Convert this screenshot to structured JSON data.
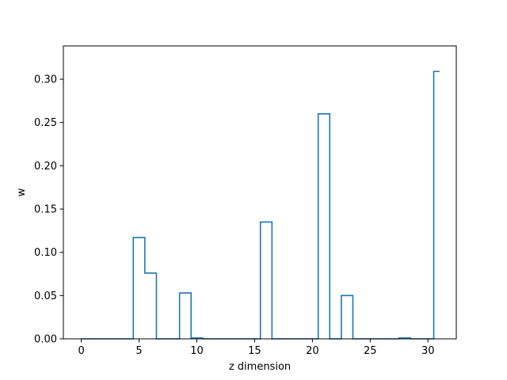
{
  "chart_data": {
    "type": "line",
    "style": "step",
    "xlabel": "z dimension",
    "ylabel": "w",
    "xlim": [
      -1.55,
      32.45
    ],
    "ylim": [
      0,
      0.3385
    ],
    "xticks": [
      0,
      5,
      10,
      15,
      20,
      25,
      30
    ],
    "yticks": [
      0.0,
      0.05,
      0.1,
      0.15,
      0.2,
      0.25,
      0.3
    ],
    "xtick_labels": [
      "0",
      "5",
      "10",
      "15",
      "20",
      "25",
      "30"
    ],
    "ytick_labels": [
      "0.00",
      "0.05",
      "0.10",
      "0.15",
      "0.20",
      "0.25",
      "0.30"
    ],
    "grid": false,
    "series_color": "#1f77b4",
    "series": [
      {
        "x": [
          0,
          1,
          2,
          3,
          4,
          5,
          6,
          7,
          8,
          9,
          10,
          11,
          12,
          13,
          14,
          15,
          16,
          17,
          18,
          19,
          20,
          21,
          22,
          23,
          24,
          25,
          26,
          27,
          28,
          29,
          30,
          31
        ],
        "values": [
          0,
          0,
          0,
          0,
          0,
          0.117,
          0.076,
          0,
          0,
          0.053,
          0.001,
          0,
          0,
          0,
          0,
          0,
          0.135,
          0,
          0,
          0,
          0,
          0.26,
          0,
          0.05,
          0,
          0,
          0,
          0,
          0.001,
          0,
          0,
          0.309
        ]
      }
    ]
  }
}
